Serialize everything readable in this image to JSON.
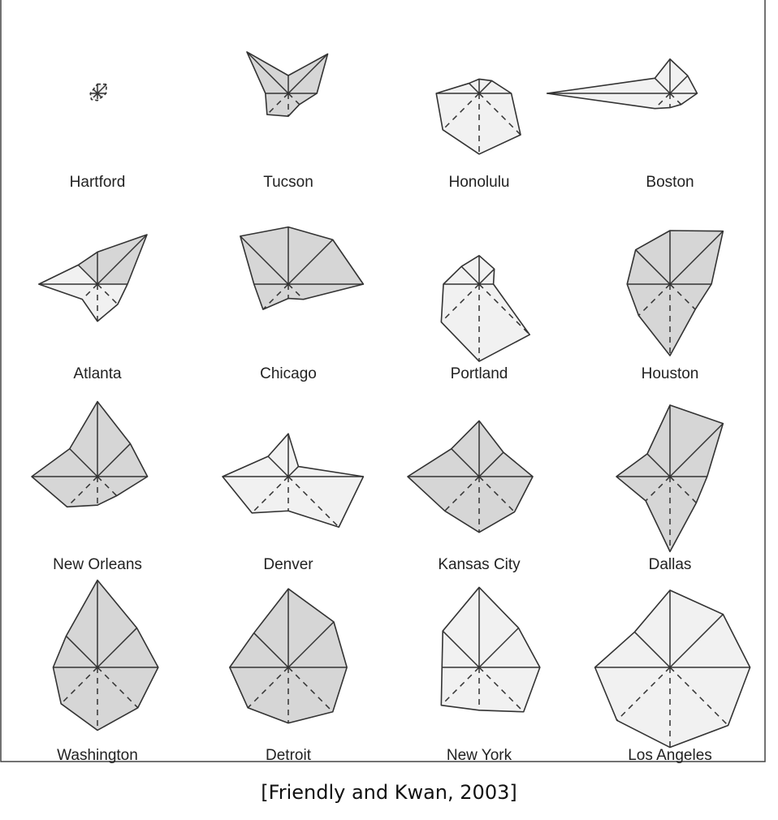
{
  "caption": "[Friendly and Kwan, 2003]",
  "chart_data": {
    "type": "star",
    "title": "",
    "n_rays": 8,
    "colors": {
      "dark_fill": "#d6d6d6",
      "light_fill": "#f1f1f1",
      "line": "#333333",
      "frame": "#444444"
    },
    "legend": "none",
    "grid": false,
    "cities": [
      {
        "name": "Hartford",
        "values": [
          0.13,
          0.18,
          0.12,
          0.08,
          0.1,
          0.12,
          0.1,
          0.08
        ],
        "shaded": []
      },
      {
        "name": "Tucson",
        "values": [
          0.25,
          0.78,
          0.4,
          0.22,
          0.32,
          0.42,
          0.32,
          0.82
        ],
        "shaded": [
          0,
          1,
          2,
          3,
          4,
          5,
          6,
          7
        ]
      },
      {
        "name": "Honolulu",
        "values": [
          0.2,
          0.25,
          0.45,
          0.82,
          0.85,
          0.72,
          0.6,
          0.2
        ],
        "shaded": []
      },
      {
        "name": "Boston",
        "values": [
          0.48,
          0.35,
          0.38,
          0.22,
          0.2,
          0.3,
          1.72,
          0.3
        ],
        "shaded": []
      },
      {
        "name": "Atlanta",
        "values": [
          0.45,
          0.98,
          0.42,
          0.4,
          0.52,
          0.3,
          0.82,
          0.38
        ],
        "shaded": [
          0,
          1,
          7
        ]
      },
      {
        "name": "Chicago",
        "values": [
          0.8,
          0.88,
          1.05,
          0.3,
          0.2,
          0.5,
          0.48,
          0.95
        ],
        "shaded": [
          0,
          1,
          2,
          3,
          4,
          5,
          6,
          7
        ]
      },
      {
        "name": "Portland",
        "values": [
          0.4,
          0.3,
          0.2,
          1.0,
          1.08,
          0.75,
          0.5,
          0.35
        ],
        "shaded": []
      },
      {
        "name": "Houston",
        "values": [
          0.75,
          1.05,
          0.58,
          0.5,
          1.0,
          0.62,
          0.6,
          0.68
        ],
        "shaded": [
          0,
          1,
          2,
          3,
          4,
          5,
          6,
          7
        ]
      },
      {
        "name": "New Orleans",
        "values": [
          1.05,
          0.65,
          0.7,
          0.38,
          0.4,
          0.6,
          0.92,
          0.55
        ],
        "shaded": [
          0,
          1,
          2,
          3,
          4,
          5,
          6,
          7
        ]
      },
      {
        "name": "Denver",
        "values": [
          0.6,
          0.2,
          1.05,
          1.0,
          0.48,
          0.72,
          0.92,
          0.4
        ],
        "shaded": []
      },
      {
        "name": "Kansas City",
        "values": [
          0.78,
          0.48,
          0.75,
          0.7,
          0.78,
          0.68,
          1.0,
          0.55
        ],
        "shaded": [
          0,
          1,
          2,
          3,
          4,
          5,
          6,
          7
        ]
      },
      {
        "name": "Dallas",
        "values": [
          1.0,
          1.05,
          0.52,
          0.52,
          1.05,
          0.48,
          0.75,
          0.45
        ],
        "shaded": [
          0,
          1,
          2,
          3,
          4,
          5,
          6,
          7
        ]
      },
      {
        "name": "Washington",
        "values": [
          1.22,
          0.78,
          0.85,
          0.8,
          0.88,
          0.72,
          0.62,
          0.62
        ],
        "shaded": [
          0,
          1,
          2,
          3,
          4,
          5,
          6,
          7
        ]
      },
      {
        "name": "Detroit",
        "values": [
          1.1,
          0.9,
          0.82,
          0.88,
          0.78,
          0.8,
          0.82,
          0.68
        ],
        "shaded": [
          0,
          1,
          2,
          3,
          4,
          5,
          6,
          7
        ]
      },
      {
        "name": "New York",
        "values": [
          1.12,
          0.78,
          0.85,
          0.88,
          0.6,
          0.75,
          0.52,
          0.72
        ],
        "shaded": []
      },
      {
        "name": "Los Angeles",
        "values": [
          1.08,
          1.05,
          1.12,
          1.15,
          1.12,
          1.05,
          1.05,
          0.7
        ],
        "shaded": []
      }
    ]
  }
}
